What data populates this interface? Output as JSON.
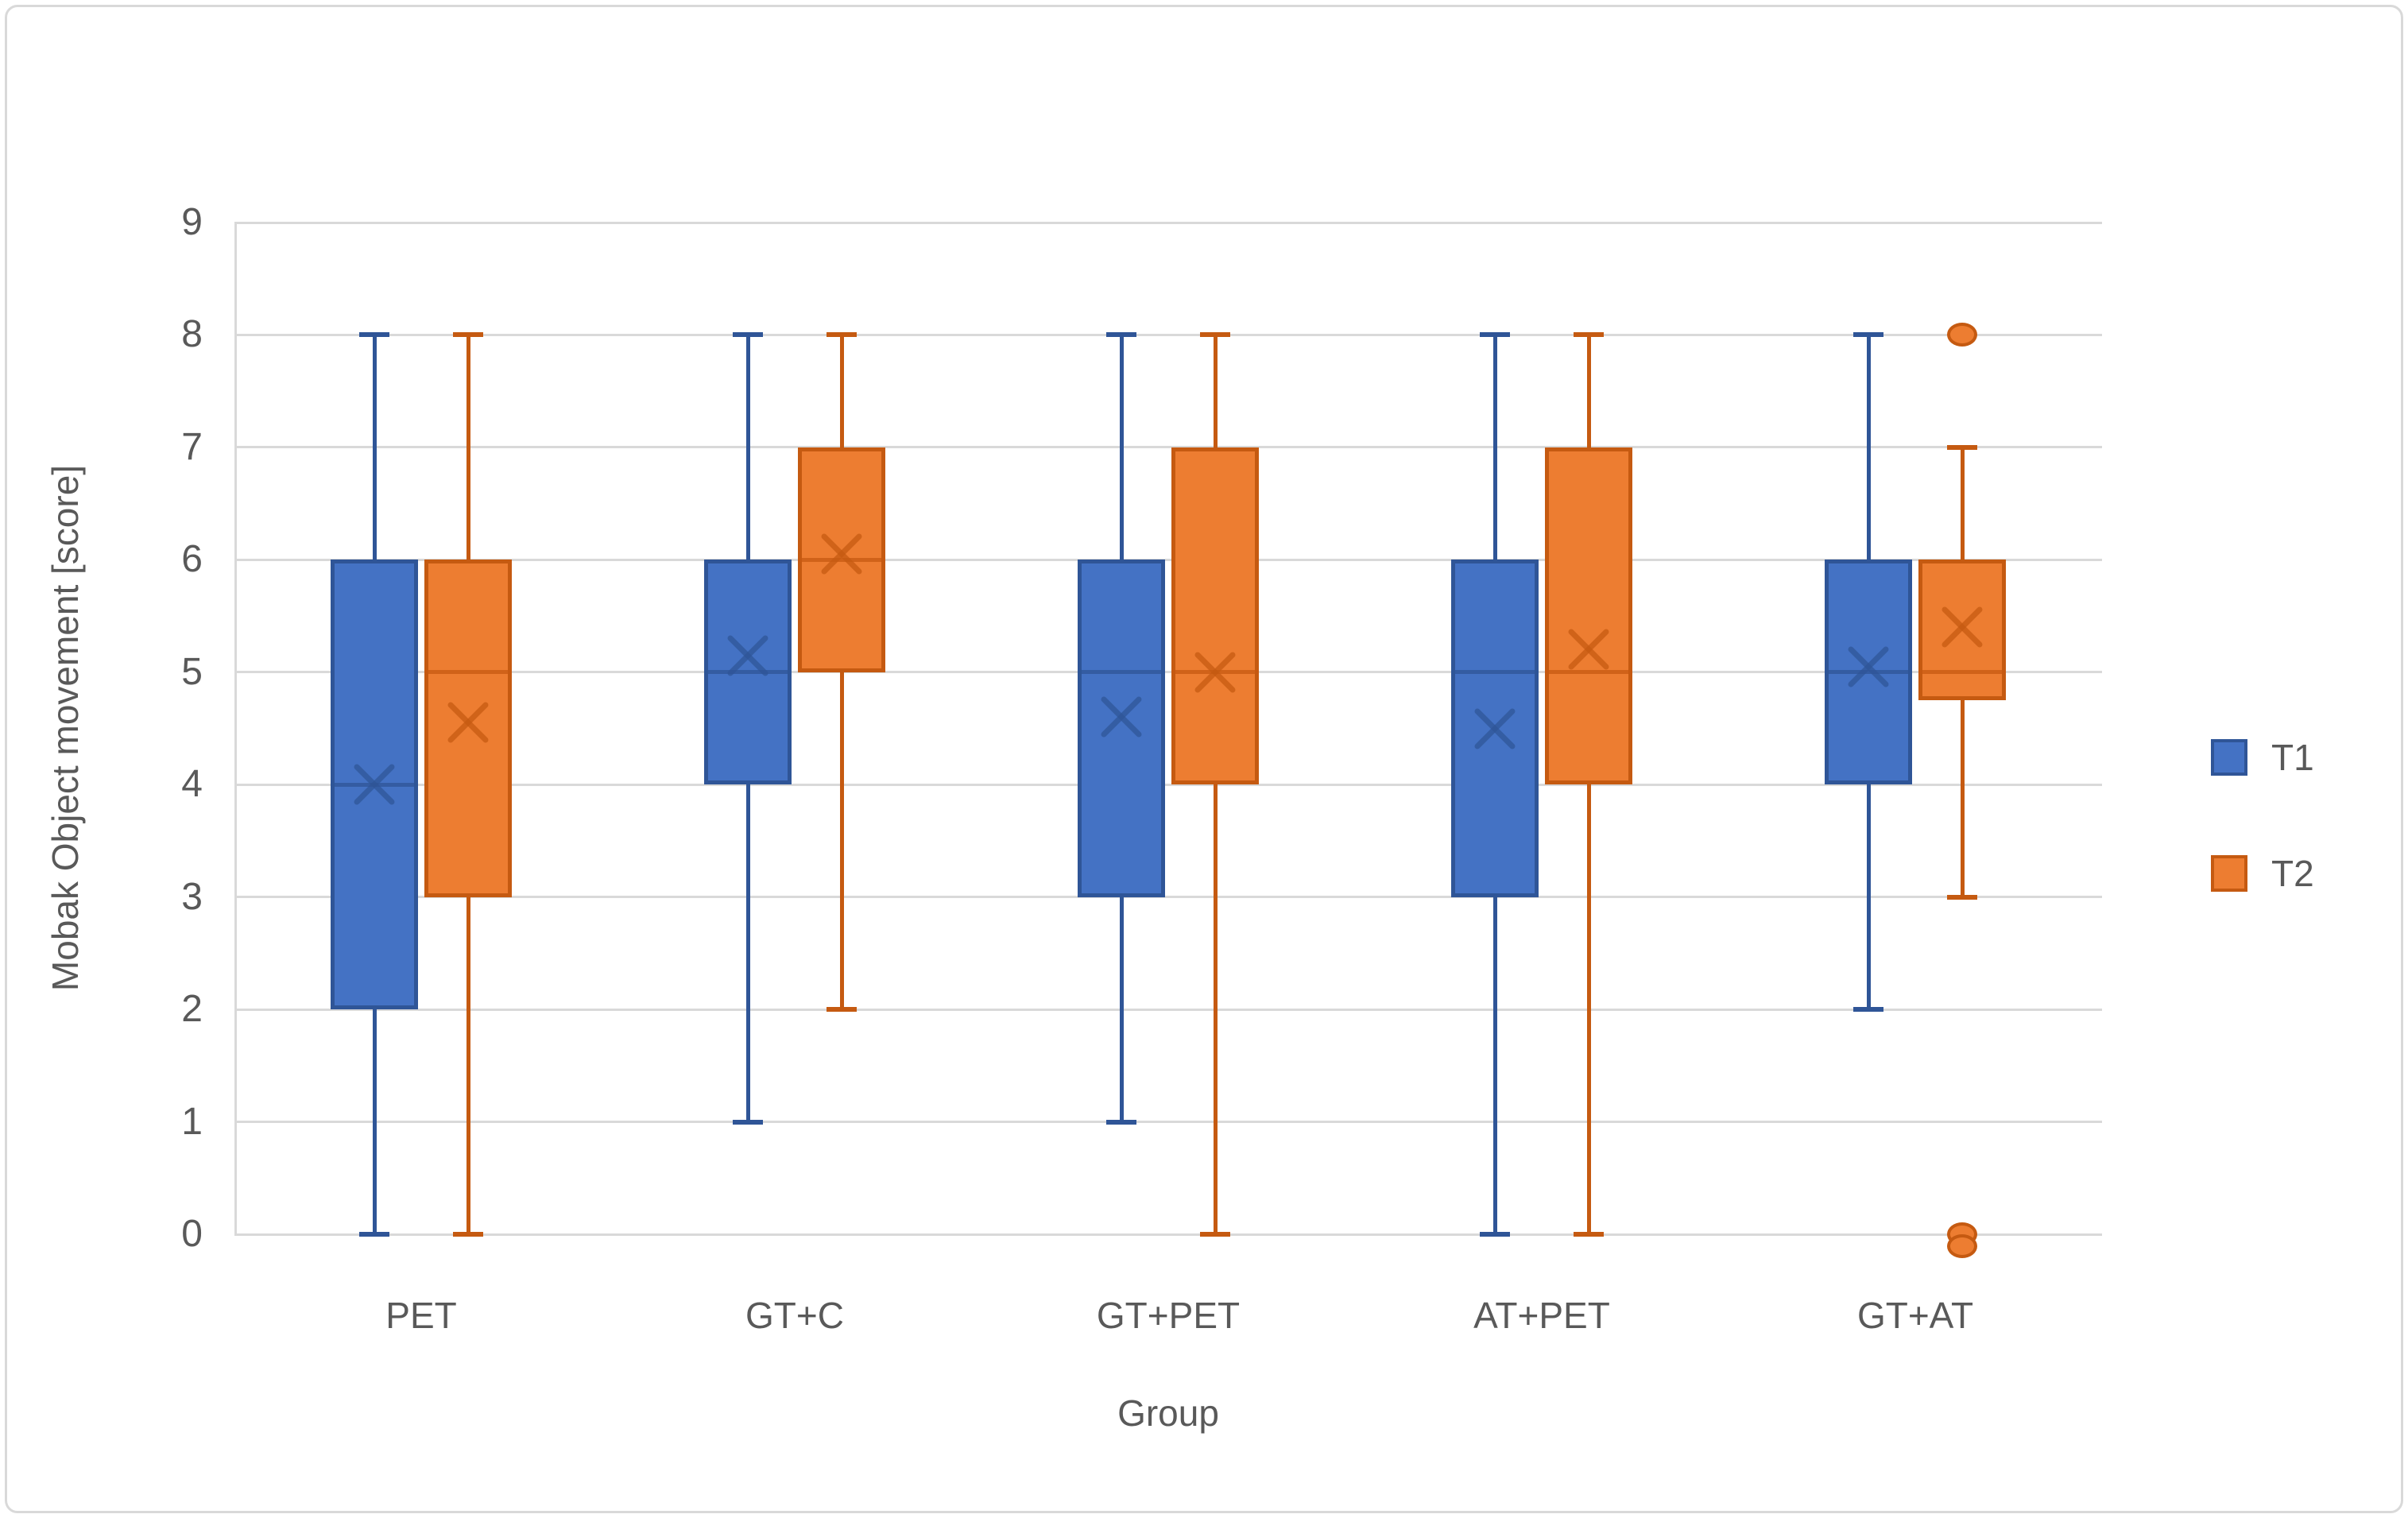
{
  "figure": {
    "background": "#FFFFFF",
    "frame_border_color": "#D9D9D9",
    "gridline_color": "#D9D9D9",
    "text_color": "#595959"
  },
  "chart_data": {
    "type": "boxplot",
    "title": "",
    "xlabel": "Group",
    "ylabel": "Mobak Object movement [score]",
    "ylim": [
      0,
      9
    ],
    "yticks": [
      0,
      1,
      2,
      3,
      4,
      5,
      6,
      7,
      8,
      9
    ],
    "grid": true,
    "categories": [
      "PET",
      "GT+C",
      "GT+PET",
      "AT+PET",
      "GT+AT"
    ],
    "legend": {
      "position": "right",
      "entries": [
        {
          "label": "T1",
          "color": "#4472C4",
          "border": "#2F5597"
        },
        {
          "label": "T2",
          "color": "#ED7D31",
          "border": "#C55A11"
        }
      ]
    },
    "series": [
      {
        "name": "T1",
        "fill": "#4472C4",
        "border": "#2F5597",
        "boxes": [
          {
            "category": "PET",
            "whisker_low": 0,
            "q1": 2,
            "median": 4,
            "q3": 6,
            "whisker_high": 8,
            "mean": 4.0,
            "outliers": []
          },
          {
            "category": "GT+C",
            "whisker_low": 1,
            "q1": 4,
            "median": 5,
            "q3": 6,
            "whisker_high": 8,
            "mean": 5.15,
            "outliers": []
          },
          {
            "category": "GT+PET",
            "whisker_low": 1,
            "q1": 3,
            "median": 5,
            "q3": 6,
            "whisker_high": 8,
            "mean": 4.6,
            "outliers": []
          },
          {
            "category": "AT+PET",
            "whisker_low": 0,
            "q1": 3,
            "median": 5,
            "q3": 6,
            "whisker_high": 8,
            "mean": 4.5,
            "outliers": []
          },
          {
            "category": "GT+AT",
            "whisker_low": 2,
            "q1": 4,
            "median": 5,
            "q3": 6,
            "whisker_high": 8,
            "mean": 5.05,
            "outliers": []
          }
        ]
      },
      {
        "name": "T2",
        "fill": "#ED7D31",
        "border": "#C55A11",
        "boxes": [
          {
            "category": "PET",
            "whisker_low": 0,
            "q1": 3,
            "median": 5,
            "q3": 6,
            "whisker_high": 8,
            "mean": 4.55,
            "outliers": []
          },
          {
            "category": "GT+C",
            "whisker_low": 2,
            "q1": 5,
            "median": 6,
            "q3": 7,
            "whisker_high": 8,
            "mean": 6.05,
            "outliers": []
          },
          {
            "category": "GT+PET",
            "whisker_low": 0,
            "q1": 4,
            "median": 5,
            "q3": 7,
            "whisker_high": 8,
            "mean": 5.0,
            "outliers": []
          },
          {
            "category": "AT+PET",
            "whisker_low": 0,
            "q1": 4,
            "median": 5,
            "q3": 7,
            "whisker_high": 8,
            "mean": 5.2,
            "outliers": []
          },
          {
            "category": "GT+AT",
            "whisker_low": 3,
            "q1": 4.75,
            "median": 5,
            "q3": 6,
            "whisker_high": 7,
            "mean": 5.4,
            "outliers": [
              8,
              0,
              0
            ]
          }
        ]
      }
    ]
  }
}
